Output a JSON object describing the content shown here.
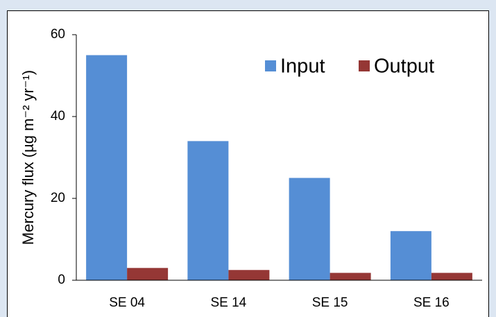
{
  "chart_data": {
    "type": "bar",
    "ylabel": "Mercury flux (µg m⁻² yr⁻¹)",
    "categories": [
      "SE 04",
      "SE 14",
      "SE 15",
      "SE 16"
    ],
    "series": [
      {
        "name": "Input",
        "color": "#558ed5",
        "values": [
          55,
          34,
          25,
          12
        ]
      },
      {
        "name": "Output",
        "color": "#953735",
        "values": [
          3,
          2.5,
          1.8,
          1.8
        ]
      }
    ],
    "ylim": [
      0,
      60
    ],
    "yticks": [
      0,
      20,
      40,
      60
    ],
    "legend": "upper right"
  }
}
